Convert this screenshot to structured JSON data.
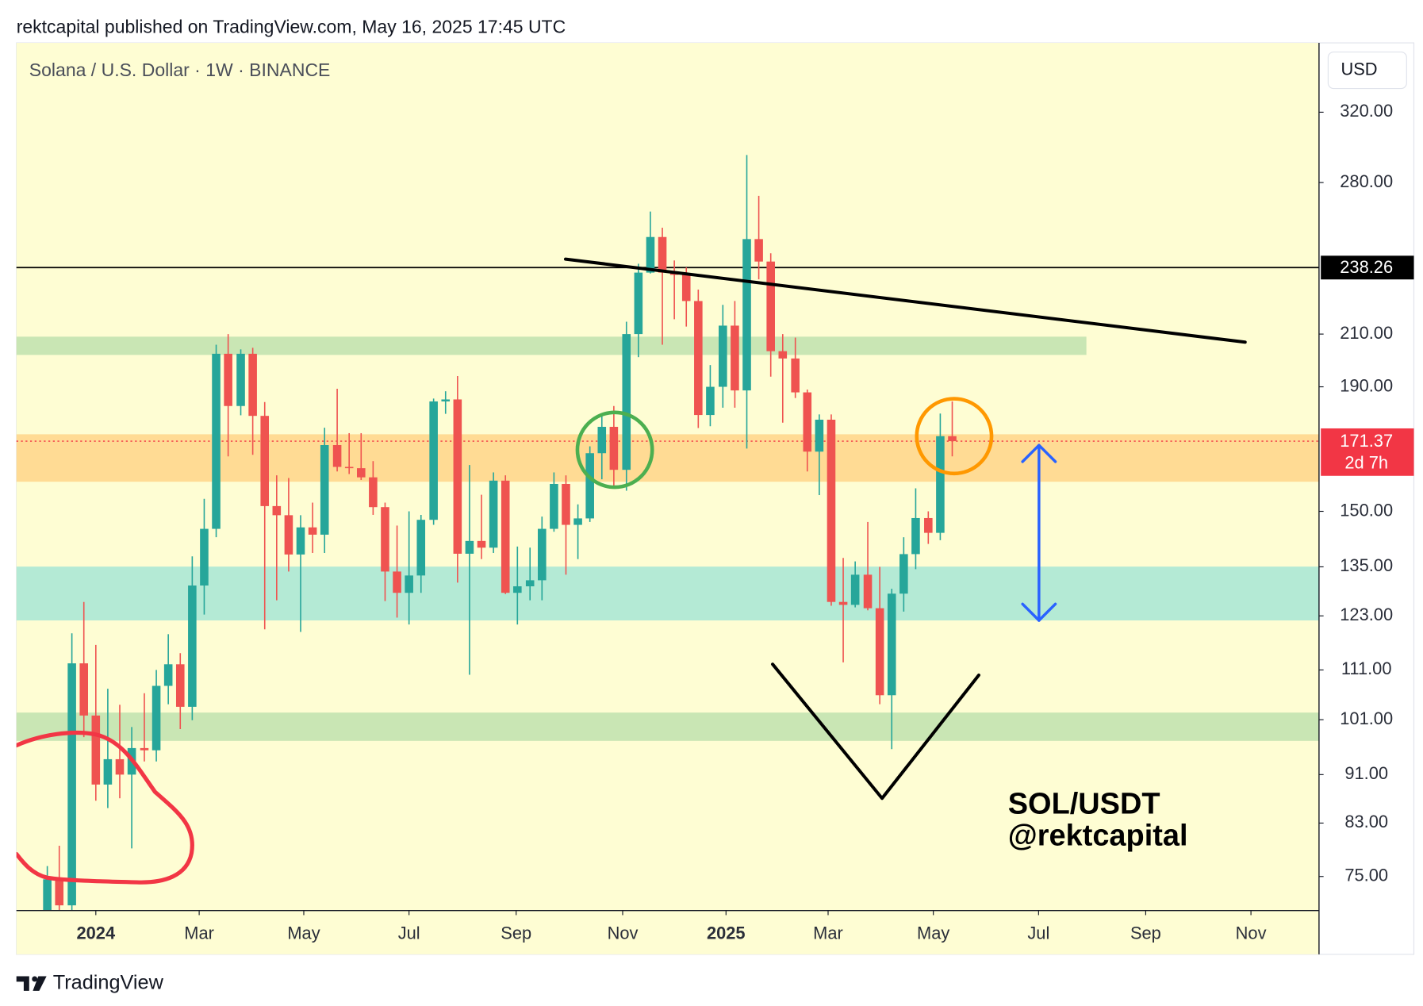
{
  "header": "rektcapital published on TradingView.com, May 16, 2025 17:45 UTC",
  "currency": "USD",
  "footer": "TradingView",
  "chart_data": {
    "type": "candlestick",
    "title": "Solana / U.S. Dollar · 1W · BINANCE",
    "up_color": "#26a69a",
    "down_color": "#ef5350",
    "log_scale": true,
    "x": [
      2023.923,
      2023.942,
      2023.962,
      2023.981,
      2024.0,
      2024.019,
      2024.038,
      2024.057,
      2024.077,
      2024.096,
      2024.115,
      2024.134,
      2024.153,
      2024.172,
      2024.191,
      2024.21,
      2024.23,
      2024.249,
      2024.268,
      2024.287,
      2024.306,
      2024.325,
      2024.344,
      2024.363,
      2024.383,
      2024.402,
      2024.421,
      2024.44,
      2024.459,
      2024.478,
      2024.497,
      2024.516,
      2024.536,
      2024.555,
      2024.574,
      2024.593,
      2024.612,
      2024.631,
      2024.65,
      2024.669,
      2024.689,
      2024.708,
      2024.727,
      2024.746,
      2024.765,
      2024.784,
      2024.803,
      2024.822,
      2024.842,
      2024.861,
      2024.88,
      2024.899,
      2024.918,
      2024.937,
      2024.956,
      2024.975,
      2024.995,
      2025.014,
      2025.033,
      2025.052,
      2025.071,
      2025.09,
      2025.11,
      2025.129,
      2025.148,
      2025.167,
      2025.186,
      2025.205,
      2025.225,
      2025.244,
      2025.263,
      2025.282,
      2025.301,
      2025.321,
      2025.34,
      2025.359
    ],
    "open": [
      59.8,
      74.6,
      71.0,
      112.4,
      101.8,
      89.3,
      93.7,
      91.0,
      95.7,
      95.3,
      107.7,
      112.2,
      103.5,
      130.3,
      145.1,
      202.3,
      183.2,
      202.3,
      179.8,
      151.5,
      148.9,
      138.2,
      145.5,
      143.5,
      170.1,
      163.2,
      162.8,
      160,
      151.2,
      133.8,
      128.5,
      132.8,
      147.6,
      184.8,
      185.5,
      138.4,
      141.8,
      140,
      159,
      128.5,
      130.1,
      131.6,
      145.1,
      158,
      146.2,
      148,
      167.5,
      176.1,
      162.3,
      210,
      236,
      252.5,
      236,
      235,
      223.6,
      180.1,
      190,
      213.4,
      188.7,
      251.5,
      241,
      203.3,
      200.5,
      188,
      168,
      178.5,
      126.3,
      125.6,
      133,
      124.8,
      105.8,
      128.3,
      138.3,
      148.1,
      144,
      173
    ],
    "high": [
      76.5,
      79.5,
      119,
      126.3,
      116.4,
      107.1,
      103.9,
      99.6,
      106.2,
      111,
      118.8,
      114.6,
      137.7,
      153.6,
      205.8,
      210,
      204,
      204.6,
      184.6,
      160.6,
      159.8,
      148.9,
      152.5,
      175.8,
      189.3,
      174,
      174,
      165,
      152.5,
      146,
      150,
      149,
      185.8,
      188.4,
      193.9,
      163.8,
      154.8,
      161.5,
      160.6,
      140.3,
      140,
      148.5,
      161.5,
      160.6,
      152,
      169.7,
      180,
      183.2,
      215,
      240,
      265,
      257,
      241.5,
      238.3,
      228.5,
      198,
      222,
      223.6,
      295,
      273,
      244.8,
      210,
      208.6,
      189,
      180.3,
      180.3,
      137.3,
      136.4,
      147,
      135,
      129.5,
      142.8,
      156.7,
      150,
      180.6,
      184.8
    ],
    "low": [
      59.0,
      62,
      68,
      97.7,
      86.6,
      85.4,
      87,
      79.1,
      93.3,
      93.3,
      104,
      99.2,
      100.9,
      123.3,
      142.8,
      166.5,
      180,
      167,
      119.9,
      126.7,
      133.8,
      119.3,
      138.6,
      138.6,
      161.8,
      161,
      159.2,
      149,
      126.5,
      122.6,
      121,
      128.5,
      146.2,
      180.5,
      131,
      110,
      137,
      138.6,
      128.2,
      121,
      126.7,
      126.7,
      144.3,
      133,
      137,
      147,
      159.4,
      157.4,
      156,
      201,
      235.6,
      205.8,
      216,
      213,
      175.7,
      176.3,
      182.6,
      182.6,
      169,
      233,
      193.7,
      177.5,
      186,
      161.8,
      154.7,
      125.4,
      112.6,
      125,
      124.3,
      104,
      95.5,
      124,
      134.4,
      141,
      142,
      166.5
    ],
    "close": [
      74.6,
      71.0,
      112.4,
      101.8,
      89.3,
      93.7,
      91.0,
      95.7,
      95.3,
      107.7,
      112.2,
      103.5,
      130.3,
      145.1,
      202.3,
      183.2,
      202.3,
      179.8,
      151.5,
      148.9,
      138.2,
      145.5,
      143.5,
      170.1,
      163.2,
      162.8,
      160,
      151.2,
      133.8,
      128.5,
      132.8,
      147.6,
      184.8,
      185.5,
      138.4,
      141.8,
      140,
      159,
      128.5,
      130.1,
      131.6,
      145.1,
      158,
      146.2,
      148,
      167.5,
      176.1,
      162.3,
      210,
      236,
      252.5,
      236,
      235,
      223.6,
      180.1,
      190,
      213.4,
      188.7,
      251.5,
      241,
      203.3,
      200.5,
      188,
      168,
      178.5,
      126.3,
      125.6,
      133,
      124.8,
      105.8,
      128.3,
      138.3,
      148.1,
      144,
      173,
      171.37
    ],
    "xlim": [
      2023.874,
      2025.941
    ],
    "ylim": [
      70.3,
      365
    ],
    "xticks": [
      2024,
      {
        "value": 2024.164,
        "label": "Mar"
      },
      {
        "value": 2024.33,
        "label": "May"
      },
      {
        "value": 2024.497,
        "label": "Jul"
      },
      {
        "value": 2024.667,
        "label": "Sep"
      },
      {
        "value": 2024.836,
        "label": "Nov"
      },
      2025,
      {
        "value": 2025.162,
        "label": "Mar"
      },
      {
        "value": 2025.329,
        "label": "May"
      },
      {
        "value": 2025.496,
        "label": "Jul"
      },
      {
        "value": 2025.666,
        "label": "Sep"
      },
      {
        "value": 2025.833,
        "label": "Nov"
      }
    ],
    "yticks": [
      {
        "value": 320,
        "label": "320.00"
      },
      {
        "value": 280,
        "label": "280.00"
      },
      {
        "value": 210,
        "label": "210.00"
      },
      {
        "value": 190,
        "label": "190.00"
      },
      {
        "value": 150,
        "label": "150.00"
      },
      {
        "value": 135,
        "label": "135.00"
      },
      {
        "value": 123,
        "label": "123.00"
      },
      {
        "value": 111,
        "label": "111.00"
      },
      {
        "value": 101,
        "label": "101.00"
      },
      {
        "value": 91,
        "label": "91.00"
      },
      {
        "value": 83,
        "label": "83.00"
      },
      {
        "value": 75,
        "label": "75.00"
      }
    ],
    "hline": {
      "value": 238.26,
      "color": "#000000"
    },
    "last_price": {
      "value": 171.37,
      "countdown": "2d 7h",
      "color": "#f23645"
    },
    "annotations": [
      "SOL/USDT",
      "@rektcapital"
    ]
  }
}
